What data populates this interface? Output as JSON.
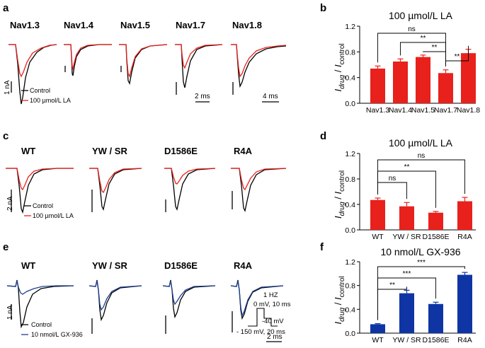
{
  "panels": {
    "a": {
      "letter": "a",
      "channels": [
        "Nav1.3",
        "Nav1.4",
        "Nav1.5",
        "Nav1.7",
        "Nav1.8"
      ],
      "legend": [
        "Control",
        "100 µmol/L LA"
      ],
      "scale_current": "1 nA",
      "scale_time_1": "2 ms",
      "scale_time_2": "4 ms"
    },
    "c": {
      "letter": "c",
      "channels": [
        "WT",
        "YW / SR",
        "D1586E",
        "R4A"
      ],
      "legend": [
        "Control",
        "100 µmol/L LA"
      ],
      "scale_current": "2 nA"
    },
    "e": {
      "letter": "e",
      "channels": [
        "WT",
        "YW / SR",
        "D1586E",
        "R4A"
      ],
      "legend": [
        "Control",
        "10 nmol/L GX-936"
      ],
      "scale_current": "1 nA",
      "scale_time": "2 ms",
      "protocol": [
        "1 HZ",
        "0 mV, 10 ms",
        "-40 mV",
        "- 150 mV, 20 ms"
      ]
    }
  },
  "ylabel": {
    "main": "I",
    "sub1": "drug",
    "sep": " / ",
    "sub2": "control"
  },
  "colors": {
    "control": "#000000",
    "la": "#e8211c",
    "gx": "#1e3f8f",
    "bar_red": "#e8211c",
    "bar_blue": "#0f35a5"
  },
  "chart_data": [
    {
      "panel": "b",
      "type": "bar",
      "title": "100 µmol/L LA",
      "categories": [
        "Nav1.3",
        "Nav1.4",
        "Nav1.5",
        "Nav1.7",
        "Nav1.8"
      ],
      "values": [
        0.54,
        0.65,
        0.72,
        0.47,
        0.78
      ],
      "errors": [
        0.04,
        0.04,
        0.03,
        0.05,
        0.06
      ],
      "ylim": [
        0,
        1.2
      ],
      "yticks": [
        "0.0",
        "0.4",
        "0.8",
        "1.2"
      ],
      "color": "bar_red",
      "significance": [
        {
          "from": 0,
          "to": 3,
          "label": "ns"
        },
        {
          "from": 1,
          "to": 3,
          "label": "**"
        },
        {
          "from": 2,
          "to": 3,
          "label": "**"
        },
        {
          "from": 3,
          "to": 4,
          "label": "**"
        }
      ]
    },
    {
      "panel": "d",
      "type": "bar",
      "title": "100 µmol/L LA",
      "categories": [
        "WT",
        "YW / SR",
        "D1586E",
        "R4A"
      ],
      "values": [
        0.47,
        0.37,
        0.27,
        0.45
      ],
      "errors": [
        0.03,
        0.06,
        0.02,
        0.06
      ],
      "ylim": [
        0,
        1.2
      ],
      "yticks": [
        "0.0",
        "0.4",
        "0.8",
        "1.2"
      ],
      "color": "bar_red",
      "significance": [
        {
          "from": 0,
          "to": 3,
          "label": "ns"
        },
        {
          "from": 0,
          "to": 2,
          "label": "**"
        },
        {
          "from": 0,
          "to": 1,
          "label": "ns"
        }
      ]
    },
    {
      "panel": "f",
      "type": "bar",
      "title": "10 nmol/L GX-936",
      "categories": [
        "WT",
        "YW / SR",
        "D1586E",
        "R4A"
      ],
      "values": [
        0.15,
        0.67,
        0.49,
        0.98
      ],
      "errors": [
        0.01,
        0.05,
        0.03,
        0.04
      ],
      "ylim": [
        0,
        1.2
      ],
      "yticks": [
        "0.0",
        "0.4",
        "0.8",
        "1.2"
      ],
      "color": "bar_blue",
      "significance": [
        {
          "from": 0,
          "to": 3,
          "label": "***"
        },
        {
          "from": 0,
          "to": 2,
          "label": "***"
        },
        {
          "from": 0,
          "to": 1,
          "label": "**"
        }
      ]
    }
  ]
}
